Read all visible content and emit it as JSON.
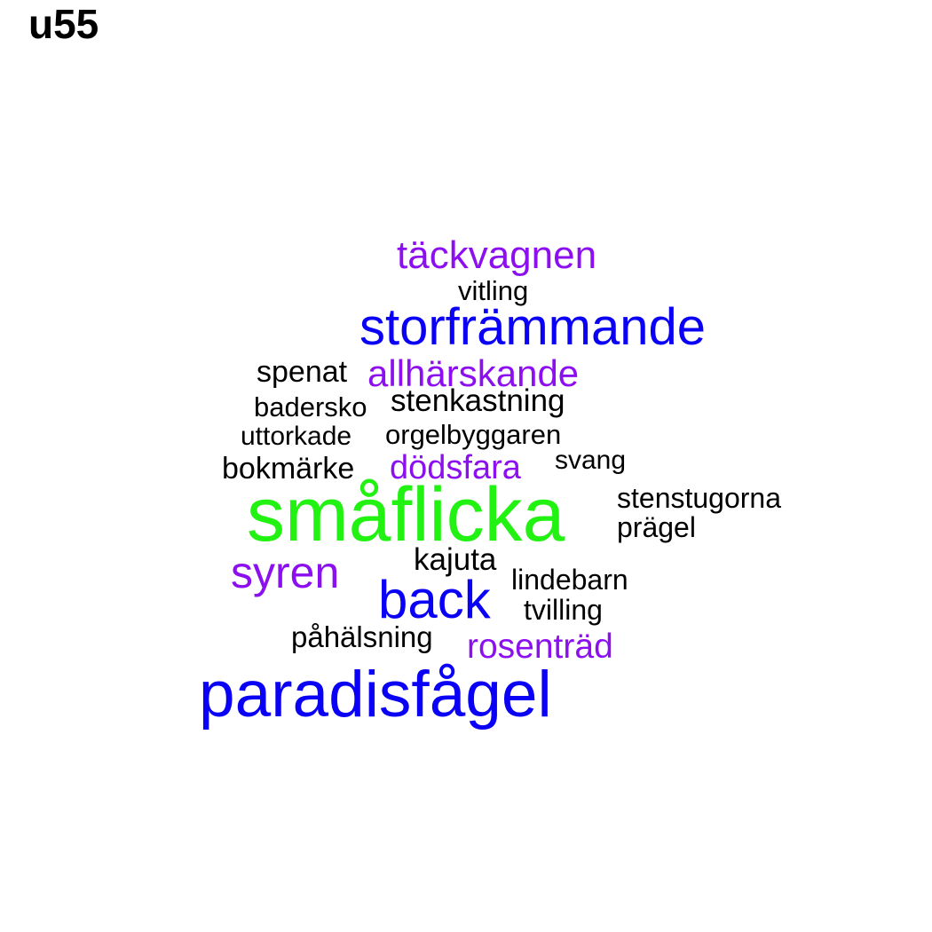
{
  "title": "u55",
  "colors": {
    "black": "#000000",
    "purple": "#8c0ff0",
    "blue": "#0a00f5",
    "green": "#22f212"
  },
  "words": [
    {
      "text": "täckvagnen",
      "color": "#8c0ff0"
    },
    {
      "text": "vitling",
      "color": "#000000"
    },
    {
      "text": "storfrämmande",
      "color": "#0a00f5"
    },
    {
      "text": "spenat",
      "color": "#000000"
    },
    {
      "text": "allhärskande",
      "color": "#8c0ff0"
    },
    {
      "text": "badersko",
      "color": "#000000"
    },
    {
      "text": "stenkastning",
      "color": "#000000"
    },
    {
      "text": "uttorkade",
      "color": "#000000"
    },
    {
      "text": "orgelbyggaren",
      "color": "#000000"
    },
    {
      "text": "bokmärke",
      "color": "#000000"
    },
    {
      "text": "dödsfara",
      "color": "#8c0ff0"
    },
    {
      "text": "svang",
      "color": "#000000"
    },
    {
      "text": "småflicka",
      "color": "#22f212"
    },
    {
      "text": "stenstugorna",
      "color": "#000000"
    },
    {
      "text": "prägel",
      "color": "#000000"
    },
    {
      "text": "kajuta",
      "color": "#000000"
    },
    {
      "text": "syren",
      "color": "#8c0ff0"
    },
    {
      "text": "lindebarn",
      "color": "#000000"
    },
    {
      "text": "back",
      "color": "#0a00f5"
    },
    {
      "text": "tvilling",
      "color": "#000000"
    },
    {
      "text": "påhälsning",
      "color": "#000000"
    },
    {
      "text": "rosenträd",
      "color": "#8c0ff0"
    },
    {
      "text": "paradisfågel",
      "color": "#0a00f5"
    }
  ]
}
